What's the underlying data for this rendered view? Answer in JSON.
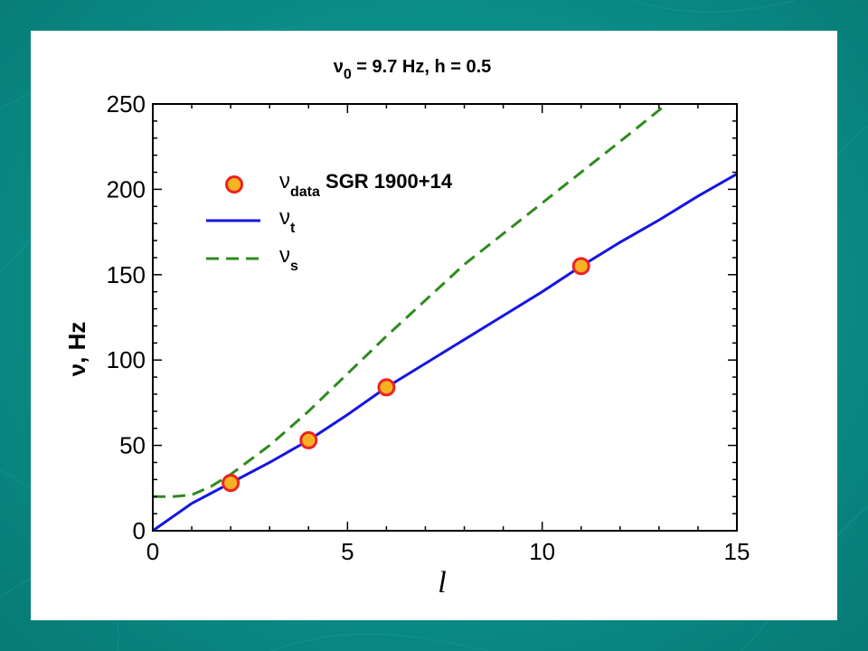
{
  "colors": {
    "background": "#0b8d87",
    "panel": "#ffffff",
    "series_t": "#1515e0",
    "series_s": "#2e8b1e",
    "marker_fill": "#f5b324",
    "marker_edge": "#ee2222"
  },
  "chart_data": {
    "type": "line",
    "title": {
      "symbol": "ν",
      "subscript": "0",
      "text": " = 9.7 Hz,  h = 0.5"
    },
    "xlabel": "l",
    "ylabel": "ν, Hz",
    "xlim": [
      0,
      15
    ],
    "ylim": [
      0,
      250
    ],
    "xticks": [
      0,
      5,
      10,
      15
    ],
    "yticks": [
      0,
      50,
      100,
      150,
      200,
      250
    ],
    "grid": false,
    "legend_position": "top-left",
    "legend": [
      {
        "key": "data",
        "symbol": "ν",
        "subscript": "data",
        "text": " SGR 1900+14",
        "style": "marker"
      },
      {
        "key": "t",
        "symbol": "ν",
        "subscript": "t",
        "text": "",
        "style": "solid"
      },
      {
        "key": "s",
        "symbol": "ν",
        "subscript": "s",
        "text": "",
        "style": "dashed"
      }
    ],
    "series": [
      {
        "key": "data",
        "style": "scatter",
        "points": [
          [
            2,
            28
          ],
          [
            4,
            53
          ],
          [
            6,
            84
          ],
          [
            11,
            155
          ]
        ]
      },
      {
        "key": "t",
        "style": "line",
        "points": [
          [
            0,
            0
          ],
          [
            1,
            16
          ],
          [
            2,
            28
          ],
          [
            3,
            40
          ],
          [
            4,
            53
          ],
          [
            5,
            68
          ],
          [
            6,
            84
          ],
          [
            7,
            98
          ],
          [
            8,
            112
          ],
          [
            9,
            126
          ],
          [
            10,
            140
          ],
          [
            11,
            155
          ],
          [
            12,
            169
          ],
          [
            13,
            182
          ],
          [
            14,
            196
          ],
          [
            15,
            209
          ]
        ]
      },
      {
        "key": "s",
        "style": "dashed",
        "points": [
          [
            0,
            20
          ],
          [
            0.5,
            20
          ],
          [
            1,
            21
          ],
          [
            1.5,
            26
          ],
          [
            2,
            33
          ],
          [
            3,
            50
          ],
          [
            4,
            70
          ],
          [
            5,
            92
          ],
          [
            6,
            114
          ],
          [
            7,
            135
          ],
          [
            8,
            156
          ],
          [
            9,
            174
          ],
          [
            10,
            192
          ],
          [
            11,
            210
          ],
          [
            12,
            228
          ],
          [
            13.2,
            250
          ]
        ]
      }
    ]
  }
}
